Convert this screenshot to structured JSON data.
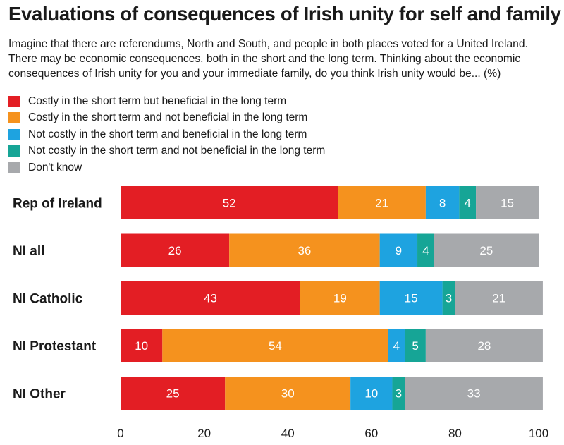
{
  "title": "Evaluations of consequences of Irish unity for self and family",
  "subtitle": "Imagine that there are referendums, North and South, and people in both places voted for a United Ireland. There may be economic consequences, both in the short and the long term. Thinking about the economic consequences of Irish unity for you and your immediate family, do you think Irish unity would be... (%)",
  "chart_data": {
    "type": "bar",
    "orientation": "horizontal",
    "stacked": true,
    "title": "Evaluations of consequences of Irish unity for self and family",
    "xlabel": "",
    "ylabel": "",
    "xlim": [
      0,
      100
    ],
    "xticks": [
      0,
      20,
      40,
      60,
      80,
      100
    ],
    "grid": false,
    "legend_position": "top-left",
    "categories": [
      "Rep of Ireland",
      "NI all",
      "NI Catholic",
      "NI Protestant",
      "NI Other"
    ],
    "series": [
      {
        "name": "Costly in the short term but beneficial in the long term",
        "color": "#e31e24",
        "values": [
          52,
          26,
          43,
          10,
          25
        ]
      },
      {
        "name": "Costly in the short term and not beneficial in the long term",
        "color": "#f5921e",
        "values": [
          21,
          36,
          19,
          54,
          30
        ]
      },
      {
        "name": "Not costly in the short term and beneficial in the long term",
        "color": "#1ea3e0",
        "values": [
          8,
          9,
          15,
          4,
          10
        ]
      },
      {
        "name": "Not costly in the short term and not beneficial in the long term",
        "color": "#16a596",
        "values": [
          4,
          4,
          3,
          5,
          3
        ]
      },
      {
        "name": "Don't know",
        "color": "#a7a9ac",
        "values": [
          15,
          25,
          21,
          28,
          33
        ]
      }
    ]
  }
}
